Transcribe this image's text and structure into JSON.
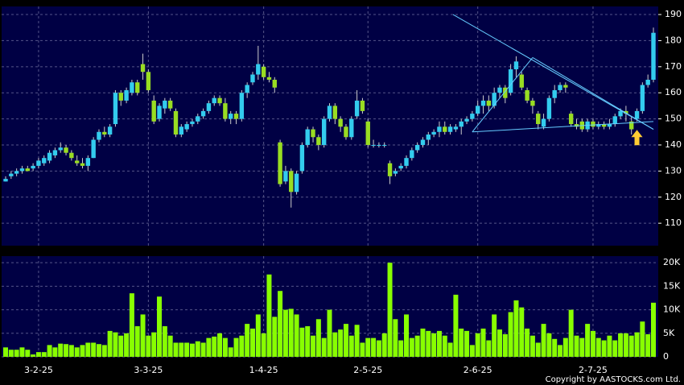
{
  "chart_data": [
    {
      "type": "candlestick",
      "up_color": "#33ccee",
      "down_color": "#99dd22",
      "background": "#000044",
      "grid": true,
      "ylim": [
        101.4,
        193.1
      ],
      "yticks": [
        110,
        120,
        130,
        140,
        150,
        160,
        170,
        180,
        190
      ],
      "ohlc": [
        [
          126,
          128,
          126,
          127
        ],
        [
          128,
          130,
          127,
          129
        ],
        [
          129,
          131,
          128,
          130
        ],
        [
          130,
          132,
          129,
          131
        ],
        [
          131,
          132,
          130,
          130
        ],
        [
          131,
          133,
          130,
          132
        ],
        [
          132,
          135,
          131,
          134
        ],
        [
          133,
          136,
          132,
          135
        ],
        [
          134,
          138,
          133,
          137
        ],
        [
          136,
          139,
          135,
          138
        ],
        [
          138,
          141,
          137,
          139
        ],
        [
          139,
          140,
          136,
          137
        ],
        [
          137,
          138,
          134,
          135
        ],
        [
          134,
          136,
          132,
          133
        ],
        [
          133,
          135,
          131,
          132
        ],
        [
          132,
          136,
          130,
          135
        ],
        [
          135,
          143,
          135,
          142
        ],
        [
          142,
          146,
          141,
          145
        ],
        [
          145,
          147,
          143,
          144
        ],
        [
          144,
          148,
          143,
          147
        ],
        [
          148,
          161,
          147,
          160
        ],
        [
          160,
          161,
          155,
          157
        ],
        [
          157,
          162,
          156,
          161
        ],
        [
          160,
          165,
          159,
          164
        ],
        [
          164,
          165,
          159,
          160
        ],
        [
          171,
          175,
          165,
          168
        ],
        [
          168,
          169,
          160,
          161
        ],
        [
          157,
          159,
          148,
          149
        ],
        [
          150,
          156,
          149,
          155
        ],
        [
          154,
          158,
          152,
          157
        ],
        [
          157,
          158,
          153,
          154
        ],
        [
          153,
          154,
          143,
          144
        ],
        [
          144,
          148,
          143,
          147
        ],
        [
          146,
          149,
          145,
          148
        ],
        [
          148,
          150,
          147,
          149
        ],
        [
          149,
          152,
          148,
          151
        ],
        [
          151,
          154,
          150,
          153
        ],
        [
          153,
          157,
          152,
          156
        ],
        [
          156,
          159,
          155,
          158
        ],
        [
          158,
          159,
          155,
          156
        ],
        [
          156,
          158,
          149,
          150
        ],
        [
          150,
          153,
          148,
          152
        ],
        [
          152,
          153,
          148,
          150
        ],
        [
          150,
          161,
          149,
          160
        ],
        [
          160,
          164,
          158,
          163
        ],
        [
          164,
          168,
          163,
          167
        ],
        [
          167,
          178,
          165,
          171
        ],
        [
          170,
          171,
          165,
          166
        ],
        [
          166,
          168,
          164,
          165
        ],
        [
          165,
          166,
          160,
          162
        ],
        [
          141,
          142,
          124,
          125
        ],
        [
          126,
          132,
          125,
          130
        ],
        [
          130,
          131,
          116,
          122
        ],
        [
          122,
          130,
          121,
          129
        ],
        [
          130,
          141,
          129,
          140
        ],
        [
          140,
          147,
          139,
          146
        ],
        [
          146,
          147,
          141,
          143
        ],
        [
          143,
          144,
          138,
          140
        ],
        [
          140,
          151,
          139,
          150
        ],
        [
          150,
          156,
          149,
          155
        ],
        [
          155,
          156,
          148,
          150
        ],
        [
          150,
          151,
          145,
          147
        ],
        [
          147,
          148,
          142,
          143
        ],
        [
          143,
          151,
          142,
          150
        ],
        [
          151,
          161,
          150,
          157
        ],
        [
          157,
          158,
          152,
          153
        ],
        [
          149,
          150,
          139,
          140
        ],
        [
          140,
          142,
          139,
          140
        ],
        [
          140,
          141,
          139,
          140
        ],
        [
          140,
          141,
          139,
          140
        ],
        [
          133,
          134,
          125,
          128
        ],
        [
          129,
          131,
          128,
          130
        ],
        [
          131,
          133,
          130,
          132
        ],
        [
          132,
          136,
          131,
          135
        ],
        [
          135,
          139,
          134,
          138
        ],
        [
          138,
          141,
          137,
          140
        ],
        [
          140,
          143,
          139,
          142
        ],
        [
          142,
          145,
          140,
          144
        ],
        [
          144,
          146,
          143,
          145
        ],
        [
          145,
          149,
          143,
          147
        ],
        [
          147,
          149,
          144,
          145
        ],
        [
          145,
          148,
          144,
          147
        ],
        [
          146,
          148,
          145,
          147
        ],
        [
          147,
          150,
          144,
          149
        ],
        [
          149,
          151,
          148,
          150
        ],
        [
          150,
          153,
          149,
          152
        ],
        [
          152,
          157,
          151,
          155
        ],
        [
          155,
          159,
          152,
          157
        ],
        [
          157,
          159,
          153,
          155
        ],
        [
          155,
          162,
          154,
          160
        ],
        [
          160,
          163,
          158,
          162
        ],
        [
          162,
          163,
          156,
          158
        ],
        [
          160,
          171,
          159,
          169
        ],
        [
          169,
          174,
          166,
          172
        ],
        [
          167,
          168,
          161,
          162
        ],
        [
          161,
          162,
          156,
          157
        ],
        [
          157,
          158,
          152,
          155
        ],
        [
          152,
          153,
          146,
          148
        ],
        [
          147,
          152,
          146,
          150
        ],
        [
          150,
          159,
          149,
          158
        ],
        [
          158,
          163,
          156,
          161
        ],
        [
          161,
          164,
          160,
          163
        ],
        [
          163,
          164,
          160,
          162
        ],
        [
          152,
          153,
          147,
          148
        ],
        [
          148,
          150,
          146,
          147
        ],
        [
          149,
          150,
          145,
          146
        ],
        [
          146,
          150,
          145,
          149
        ],
        [
          149,
          150,
          146,
          147
        ],
        [
          147,
          149,
          146,
          148
        ],
        [
          148,
          149,
          146,
          147
        ],
        [
          147,
          150,
          146,
          148
        ],
        [
          148,
          152,
          147,
          151
        ],
        [
          151,
          154,
          150,
          153
        ],
        [
          153,
          155,
          149,
          152
        ],
        [
          149,
          151,
          144,
          146
        ],
        [
          150,
          154,
          149,
          153
        ],
        [
          153,
          164,
          152,
          163
        ],
        [
          163,
          167,
          162,
          165
        ],
        [
          165,
          185,
          164,
          183
        ]
      ],
      "trendlines": [
        [
          81.5,
          190,
          118,
          146
        ],
        [
          85,
          145,
          96,
          173.5
        ],
        [
          96,
          173.5,
          118,
          146
        ],
        [
          85,
          145,
          118,
          149
        ]
      ],
      "trendline_color": "#66ccff",
      "arrow": {
        "x": 115,
        "y": 143,
        "color": "#ffcc33"
      }
    },
    {
      "type": "bar",
      "color": "#88ff00",
      "ylim": [
        0,
        21400
      ],
      "yticks": [
        {
          "value": 0,
          "label": "0"
        },
        {
          "value": 5000,
          "label": "5K"
        },
        {
          "value": 10000,
          "label": "10K"
        },
        {
          "value": 15000,
          "label": "15K"
        },
        {
          "value": 20000,
          "label": "20K"
        }
      ],
      "categories": [
        null,
        null,
        null,
        null,
        null,
        null,
        "3-2-25",
        null,
        null,
        null,
        null,
        null,
        null,
        null,
        null,
        null,
        null,
        null,
        null,
        null,
        null,
        null,
        null,
        null,
        null,
        null,
        "3-3-25",
        null,
        null,
        null,
        null,
        null,
        null,
        null,
        null,
        null,
        null,
        null,
        null,
        null,
        null,
        null,
        null,
        null,
        null,
        null,
        null,
        "1-4-25",
        null,
        null,
        null,
        null,
        null,
        null,
        null,
        null,
        null,
        null,
        null,
        null,
        null,
        null,
        null,
        null,
        null,
        null,
        "2-5-25",
        null,
        null,
        null,
        null,
        null,
        null,
        null,
        null,
        null,
        null,
        null,
        null,
        null,
        null,
        null,
        null,
        null,
        null,
        null,
        "2-6-25",
        null,
        null,
        null,
        null,
        null,
        null,
        null,
        null,
        null,
        null,
        null,
        null,
        null,
        null,
        null,
        null,
        null,
        null,
        null,
        null,
        "2-7-25",
        null,
        null,
        null,
        null,
        null,
        null,
        null,
        null,
        null,
        null,
        null
      ],
      "values": [
        2000,
        1500,
        1500,
        2000,
        1500,
        500,
        1000,
        1000,
        2500,
        2000,
        2800,
        2700,
        2500,
        2000,
        2500,
        3000,
        3000,
        2700,
        2500,
        5500,
        5200,
        4500,
        5000,
        13500,
        6500,
        9000,
        4500,
        5200,
        12800,
        6500,
        4500,
        3000,
        3000,
        3000,
        2800,
        3300,
        3000,
        4000,
        4300,
        5000,
        4000,
        2000,
        4000,
        4500,
        7000,
        6000,
        9000,
        5000,
        17500,
        8500,
        14000,
        10000,
        10200,
        9000,
        6200,
        6500,
        4500,
        8000,
        4000,
        10000,
        5200,
        5800,
        7000,
        4500,
        6800,
        3000,
        4000,
        4000,
        3500,
        5000,
        20000,
        8000,
        3500,
        9000,
        4000,
        4500,
        6000,
        5500,
        5000,
        5500,
        4500,
        3000,
        13200,
        6000,
        5500,
        2500,
        5000,
        6000,
        3500,
        9000,
        5800,
        4800,
        9500,
        12000,
        10500,
        6000,
        4500,
        3000,
        7000,
        5000,
        3800,
        2500,
        4000,
        10000,
        4500,
        4000,
        7000,
        5500,
        4000,
        3500,
        4500,
        3500,
        5000,
        5000,
        4500,
        5200,
        7500,
        4800,
        11500
      ]
    }
  ],
  "footer": "Copyright by AASTOCKS.com Ltd."
}
